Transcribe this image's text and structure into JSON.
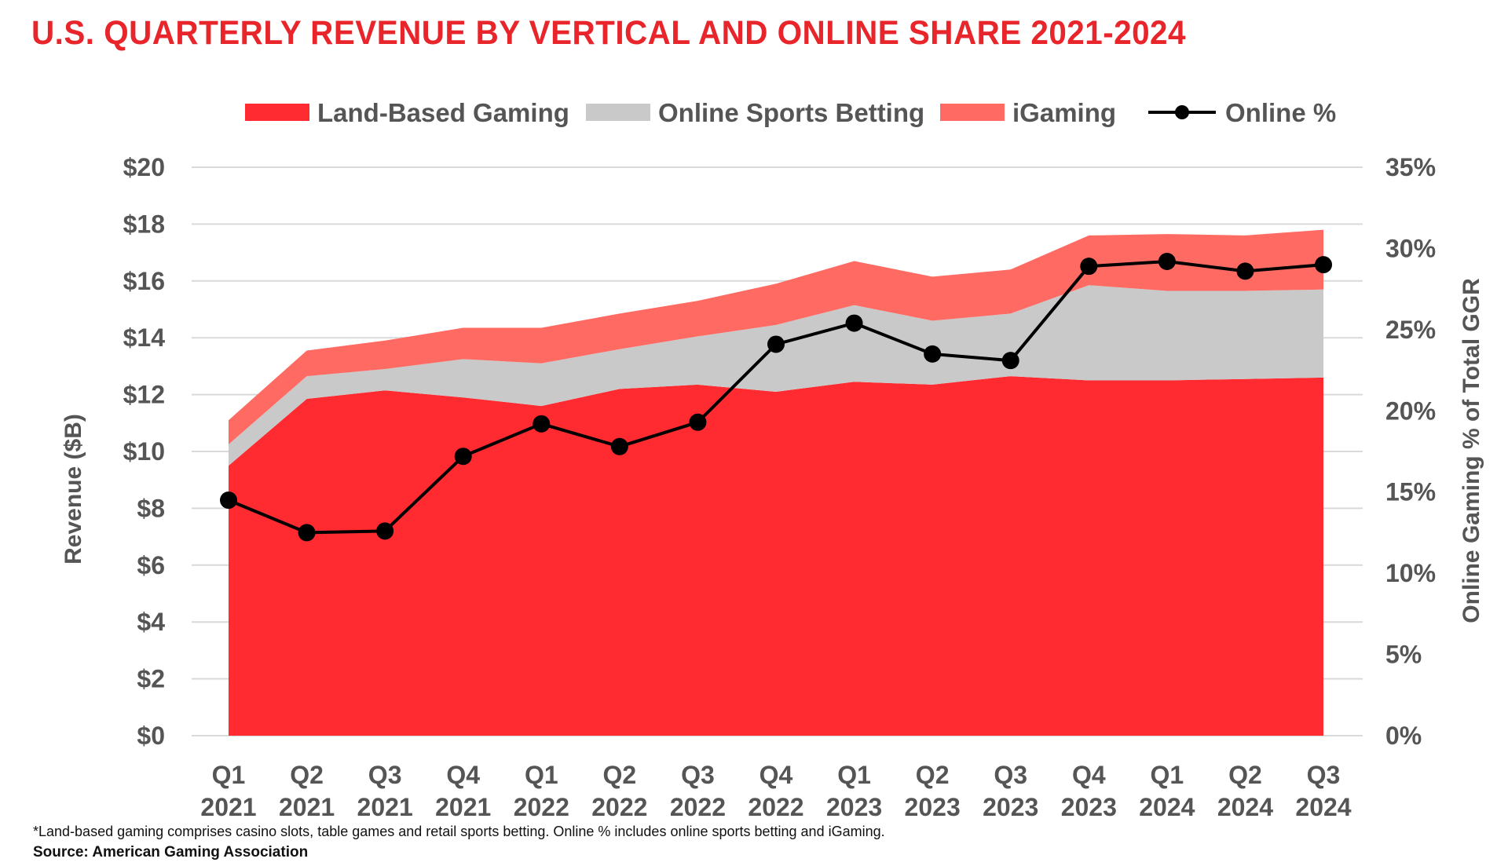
{
  "title": "U.S. QUARTERLY REVENUE BY VERTICAL AND ONLINE SHARE 2021-2024",
  "footnote": "*Land-based gaming comprises casino slots, table games and retail sports betting. Online % includes online sports betting and iGaming.",
  "source": "Source: American Gaming Association",
  "colors": {
    "land": "#ff2b31",
    "osb": "#c9c9c9",
    "igaming": "#ff6b63",
    "line": "#000000",
    "grid": "#d9d9d9",
    "text": "#555555",
    "title": "#e8252b"
  },
  "chart_data": {
    "type": "area",
    "stacked": true,
    "categories": [
      [
        "Q1",
        "2021"
      ],
      [
        "Q2",
        "2021"
      ],
      [
        "Q3",
        "2021"
      ],
      [
        "Q4",
        "2021"
      ],
      [
        "Q1",
        "2022"
      ],
      [
        "Q2",
        "2022"
      ],
      [
        "Q3",
        "2022"
      ],
      [
        "Q4",
        "2022"
      ],
      [
        "Q1",
        "2023"
      ],
      [
        "Q2",
        "2023"
      ],
      [
        "Q3",
        "2023"
      ],
      [
        "Q4",
        "2023"
      ],
      [
        "Q1",
        "2024"
      ],
      [
        "Q2",
        "2024"
      ],
      [
        "Q3",
        "2024"
      ]
    ],
    "series": [
      {
        "name": "Land-Based Gaming",
        "kind": "area",
        "color": "#ff2b31",
        "values": [
          9.5,
          11.85,
          12.15,
          11.9,
          11.6,
          12.2,
          12.35,
          12.1,
          12.45,
          12.35,
          12.65,
          12.5,
          12.5,
          12.55,
          12.6
        ]
      },
      {
        "name": "Online Sports Betting",
        "kind": "area",
        "color": "#c9c9c9",
        "values": [
          0.75,
          0.8,
          0.75,
          1.35,
          1.5,
          1.4,
          1.7,
          2.35,
          2.7,
          2.25,
          2.2,
          3.35,
          3.15,
          3.1,
          3.1
        ]
      },
      {
        "name": "iGaming",
        "kind": "area",
        "color": "#ff6b63",
        "values": [
          0.85,
          0.9,
          1.0,
          1.1,
          1.25,
          1.25,
          1.25,
          1.45,
          1.55,
          1.55,
          1.55,
          1.75,
          2.0,
          1.95,
          2.1
        ]
      },
      {
        "name": "Online %",
        "kind": "line",
        "axis": "right",
        "color": "#000000",
        "values": [
          14.5,
          12.5,
          12.6,
          17.2,
          19.2,
          17.8,
          19.3,
          24.1,
          25.4,
          23.5,
          23.1,
          28.9,
          29.2,
          28.6,
          29.0
        ]
      }
    ],
    "y_left": {
      "label": "Revenue ($B)",
      "range": [
        0,
        20
      ],
      "ticks": [
        "$0",
        "$2",
        "$4",
        "$6",
        "$8",
        "$10",
        "$12",
        "$14",
        "$16",
        "$18",
        "$20"
      ]
    },
    "y_right": {
      "label": "Online Gaming % of Total GGR",
      "range": [
        0,
        35
      ],
      "ticks": [
        "0%",
        "5%",
        "10%",
        "15%",
        "20%",
        "25%",
        "30%",
        "35%"
      ]
    },
    "grid": true,
    "legend": "top"
  }
}
